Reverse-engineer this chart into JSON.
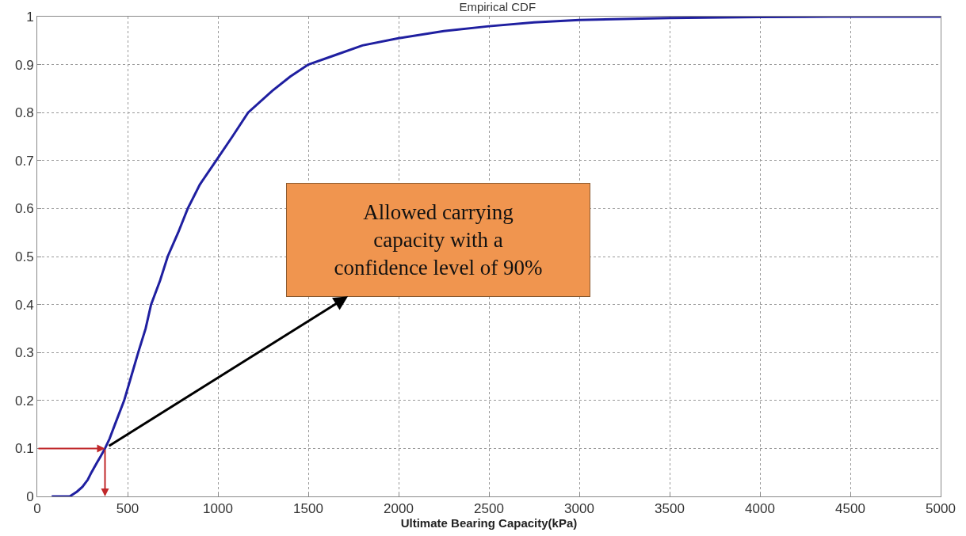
{
  "chart_data": {
    "type": "line",
    "title": "Empirical CDF",
    "xlabel": "Ultimate Bearing Capacity(kPa)",
    "x": [
      80,
      180,
      220,
      250,
      280,
      300,
      330,
      350,
      375,
      400,
      430,
      481,
      520,
      559,
      600,
      630,
      680,
      722,
      780,
      833,
      900,
      990,
      1080,
      1167,
      1300,
      1400,
      1500,
      1650,
      1800,
      2000,
      2250,
      2500,
      2750,
      3000,
      3500,
      4000,
      4400,
      5000
    ],
    "series": [
      {
        "color": "#1f1fa0",
        "values": [
          0,
          0,
          0.01,
          0.02,
          0.035,
          0.05,
          0.07,
          0.083,
          0.1,
          0.12,
          0.15,
          0.2,
          0.25,
          0.3,
          0.35,
          0.4,
          0.45,
          0.5,
          0.55,
          0.6,
          0.65,
          0.7,
          0.75,
          0.8,
          0.845,
          0.875,
          0.9,
          0.92,
          0.94,
          0.955,
          0.97,
          0.98,
          0.988,
          0.993,
          0.997,
          0.999,
          1,
          1
        ]
      }
    ],
    "xlim": [
      0,
      5000
    ],
    "ylim": [
      0,
      1
    ],
    "xticks": [
      0,
      500,
      1000,
      1500,
      2000,
      2500,
      3000,
      3500,
      4000,
      4500,
      5000
    ],
    "yticks": [
      0,
      0.1,
      0.2,
      0.3,
      0.4,
      0.5,
      0.6,
      0.7,
      0.8,
      0.9,
      1
    ],
    "grid": true,
    "line_style": "solid",
    "marker": "none",
    "annotations": [
      {
        "text": "Allowed carrying\ncapacity with a\nconfidence level of 90%",
        "x": 375,
        "y": 0.1
      }
    ]
  }
}
